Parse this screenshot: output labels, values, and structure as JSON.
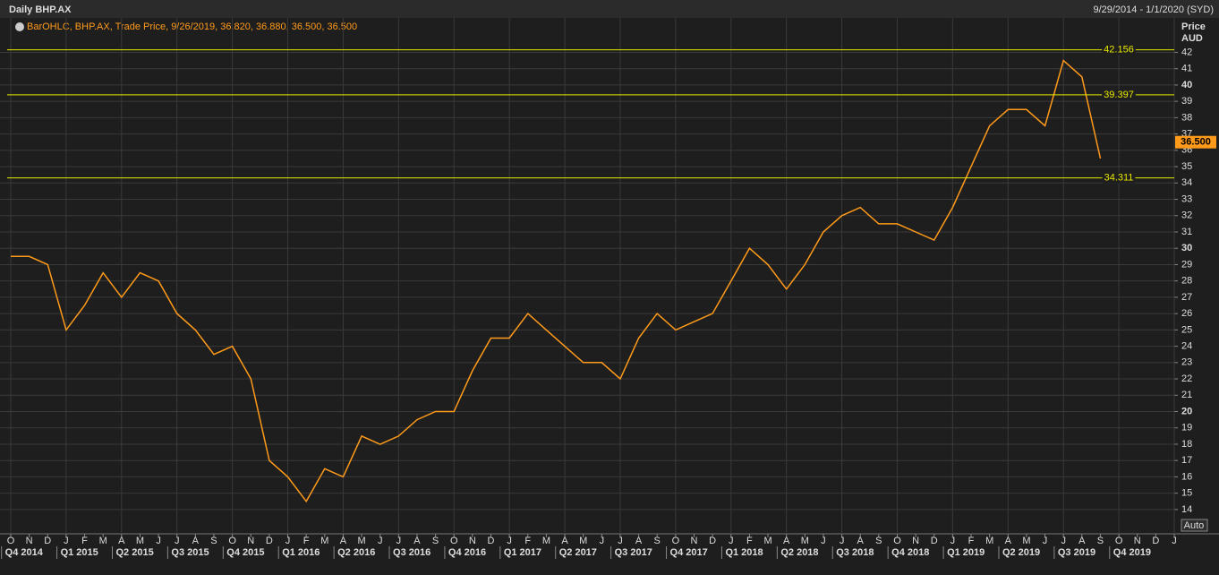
{
  "chart_data": {
    "type": "line",
    "title": "Daily BHP.AX",
    "date_range": "9/29/2014 - 1/1/2020 (SYD)",
    "legend_text": "BarOHLC, BHP.AX, Trade Price, 9/26/2019, 36.820, 36.880, 36.500, 36.500",
    "y_label": "Price",
    "y_unit": "AUD",
    "scale_button": "Auto",
    "categories": [
      "O",
      "N",
      "D",
      "J",
      "F",
      "M",
      "A",
      "M",
      "J",
      "J",
      "A",
      "S",
      "O",
      "N",
      "D",
      "J",
      "F",
      "M",
      "A",
      "M",
      "J",
      "J",
      "A",
      "S",
      "O",
      "N",
      "D",
      "J",
      "F",
      "M",
      "A",
      "M",
      "J",
      "J",
      "A",
      "S",
      "O",
      "N",
      "D",
      "J",
      "F",
      "M",
      "A",
      "M",
      "J",
      "J",
      "A",
      "S",
      "O",
      "N",
      "D",
      "J",
      "F",
      "M",
      "A",
      "M",
      "J",
      "J",
      "A",
      "S",
      "O",
      "N",
      "D",
      "J"
    ],
    "quarters": [
      "Q4 2014",
      "Q1 2015",
      "Q2 2015",
      "Q3 2015",
      "Q4 2015",
      "Q1 2016",
      "Q2 2016",
      "Q3 2016",
      "Q4 2016",
      "Q1 2017",
      "Q2 2017",
      "Q3 2017",
      "Q4 2017",
      "Q1 2018",
      "Q2 2018",
      "Q3 2018",
      "Q4 2018",
      "Q1 2019",
      "Q2 2019",
      "Q3 2019",
      "Q4 2019"
    ],
    "series": [
      {
        "name": "BHP.AX",
        "color": "#ff9a1a",
        "values": [
          29.5,
          29.5,
          29,
          25,
          26.5,
          28.5,
          27,
          28.5,
          28,
          26,
          25,
          23.5,
          24,
          22,
          17,
          16,
          14.5,
          16.5,
          16,
          18.5,
          18,
          18.5,
          19.5,
          20,
          20,
          22.5,
          24.5,
          24.5,
          26,
          25,
          24,
          23,
          23,
          22,
          24.5,
          26,
          25,
          25.5,
          26,
          28,
          30,
          29,
          27.5,
          29,
          31,
          32,
          32.5,
          31.5,
          31.5,
          31,
          30.5,
          32.5,
          35,
          37.5,
          38.5,
          38.5,
          37.5,
          41.5,
          40.5,
          35.5,
          null,
          null,
          null,
          null
        ]
      }
    ],
    "hlines": [
      42.156,
      39.397,
      34.311
    ],
    "hline_color": "#e8e800",
    "last_price": {
      "value": 36.5,
      "label": "36.500"
    },
    "ylim": [
      13.5,
      44
    ],
    "yticks": [
      14,
      15,
      16,
      17,
      18,
      19,
      20,
      21,
      22,
      23,
      24,
      25,
      26,
      27,
      28,
      29,
      30,
      31,
      32,
      33,
      34,
      35,
      36,
      37,
      38,
      39,
      40,
      41,
      42
    ],
    "grid": true
  }
}
